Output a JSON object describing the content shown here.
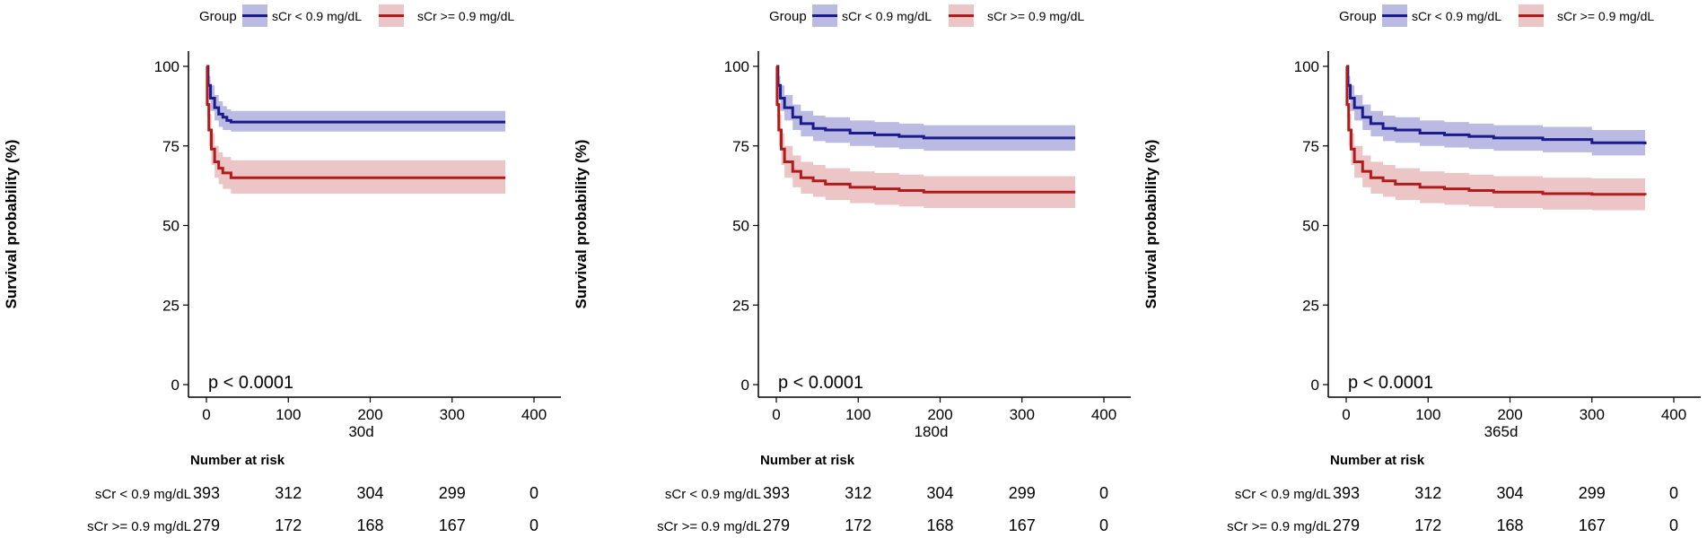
{
  "chart_data": [
    {
      "type": "line",
      "title": "",
      "legend": {
        "title": "Group",
        "placement": "top"
      },
      "xlabel": "30d",
      "ylabel": "Survival probability (%)",
      "xlim": [
        0,
        400
      ],
      "ylim": [
        0,
        100
      ],
      "xticks": [
        "0",
        "100",
        "200",
        "300",
        "400"
      ],
      "yticks": [
        "0",
        "25",
        "50",
        "75",
        "100"
      ],
      "annotation": "p < 0.0001",
      "risk_table_title": "Number at risk",
      "series": [
        {
          "name": "sCr < 0.9 mg/dL",
          "color": "#1a1a8c",
          "band_color": "#8c8cd0",
          "x": [
            0,
            2,
            5,
            10,
            15,
            20,
            25,
            30,
            365
          ],
          "y": [
            100,
            94,
            90,
            87,
            85,
            84,
            83,
            82.5,
            82.5
          ],
          "ci_low": [
            100,
            90,
            86,
            83,
            81,
            80,
            80,
            79.5,
            79.5
          ],
          "ci_high": [
            100,
            97,
            94,
            91,
            89,
            87.5,
            86.5,
            86,
            86
          ],
          "risk": [
            "393",
            "312",
            "304",
            "299",
            "0"
          ]
        },
        {
          "name": "sCr >= 0.9 mg/dL",
          "color": "#b01c1c",
          "band_color": "#e0a0a0",
          "x": [
            0,
            1,
            3,
            6,
            10,
            15,
            20,
            30,
            365
          ],
          "y": [
            100,
            88,
            80,
            74,
            70,
            68,
            66.5,
            65,
            65
          ],
          "ci_low": [
            100,
            84,
            75,
            69,
            65,
            63,
            61.5,
            60,
            60
          ],
          "ci_high": [
            100,
            92,
            85,
            79,
            75,
            73,
            71.5,
            70.5,
            70.5
          ],
          "risk": [
            "279",
            "172",
            "168",
            "167",
            "0"
          ]
        }
      ]
    },
    {
      "type": "line",
      "title": "",
      "legend": {
        "title": "Group",
        "placement": "top"
      },
      "xlabel": "180d",
      "ylabel": "Survival probability (%)",
      "xlim": [
        0,
        400
      ],
      "ylim": [
        0,
        100
      ],
      "xticks": [
        "0",
        "100",
        "200",
        "300",
        "400"
      ],
      "yticks": [
        "0",
        "25",
        "50",
        "75",
        "100"
      ],
      "annotation": "p < 0.0001",
      "risk_table_title": "Number at risk",
      "series": [
        {
          "name": "sCr < 0.9 mg/dL",
          "color": "#1a1a8c",
          "band_color": "#8c8cd0",
          "x": [
            0,
            2,
            5,
            10,
            20,
            30,
            45,
            60,
            90,
            120,
            150,
            180,
            365
          ],
          "y": [
            100,
            94,
            90,
            87,
            84,
            82,
            80.5,
            80,
            79,
            78.5,
            78,
            77.5,
            77.5
          ],
          "ci_low": [
            100,
            90,
            86,
            83,
            80,
            78,
            76.5,
            76,
            75,
            74.5,
            74,
            73.5,
            73.5
          ],
          "ci_high": [
            100,
            97,
            94,
            91,
            88,
            86,
            84.5,
            84,
            83,
            82.5,
            82,
            81.5,
            81.5
          ],
          "risk": [
            "393",
            "312",
            "304",
            "299",
            "0"
          ]
        },
        {
          "name": "sCr >= 0.9 mg/dL",
          "color": "#b01c1c",
          "band_color": "#e0a0a0",
          "x": [
            0,
            1,
            3,
            6,
            10,
            20,
            30,
            45,
            60,
            90,
            120,
            150,
            180,
            365
          ],
          "y": [
            100,
            88,
            80,
            74,
            70,
            67,
            65,
            64,
            63,
            62,
            61.5,
            61,
            60.5,
            60.5
          ],
          "ci_low": [
            100,
            84,
            75,
            69,
            65,
            62,
            60,
            59,
            58,
            57,
            56.5,
            56,
            55.5,
            55.5
          ],
          "ci_high": [
            100,
            92,
            85,
            79,
            75,
            72,
            70,
            69,
            68,
            67,
            66.5,
            66,
            65.5,
            65.5
          ],
          "risk": [
            "279",
            "172",
            "168",
            "167",
            "0"
          ]
        }
      ]
    },
    {
      "type": "line",
      "title": "",
      "legend": {
        "title": "Group",
        "placement": "top"
      },
      "xlabel": "365d",
      "ylabel": "Survival probability (%)",
      "xlim": [
        0,
        400
      ],
      "ylim": [
        0,
        100
      ],
      "xticks": [
        "0",
        "100",
        "200",
        "300",
        "400"
      ],
      "yticks": [
        "0",
        "25",
        "50",
        "75",
        "100"
      ],
      "annotation": "p < 0.0001",
      "risk_table_title": "Number at risk",
      "series": [
        {
          "name": "sCr < 0.9 mg/dL",
          "color": "#1a1a8c",
          "band_color": "#8c8cd0",
          "x": [
            0,
            2,
            5,
            10,
            20,
            30,
            45,
            60,
            90,
            120,
            150,
            180,
            240,
            300,
            365
          ],
          "y": [
            100,
            94,
            90,
            87,
            84,
            82,
            80.5,
            80,
            79,
            78.5,
            78,
            77.5,
            77,
            76,
            75.5
          ],
          "ci_low": [
            100,
            90,
            86,
            83,
            80,
            78,
            76.5,
            76,
            75,
            74.5,
            74,
            73.5,
            73,
            72,
            71.5
          ],
          "ci_high": [
            100,
            97,
            94,
            91,
            88,
            86,
            84.5,
            84,
            83,
            82.5,
            82,
            81.5,
            81,
            80,
            79.5
          ],
          "risk": [
            "393",
            "312",
            "304",
            "299",
            "0"
          ]
        },
        {
          "name": "sCr >= 0.9 mg/dL",
          "color": "#b01c1c",
          "band_color": "#e0a0a0",
          "x": [
            0,
            1,
            3,
            6,
            10,
            20,
            30,
            45,
            60,
            90,
            120,
            150,
            180,
            240,
            300,
            365
          ],
          "y": [
            100,
            88,
            80,
            74,
            70,
            67,
            65,
            64,
            63,
            62,
            61.5,
            61,
            60.5,
            60,
            59.8,
            59.5
          ],
          "ci_low": [
            100,
            84,
            75,
            69,
            65,
            62,
            60,
            59,
            58,
            57,
            56.5,
            56,
            55.5,
            55,
            54.8,
            54.5
          ],
          "ci_high": [
            100,
            92,
            85,
            79,
            75,
            72,
            70,
            69,
            68,
            67,
            66.5,
            66,
            65.5,
            65,
            64.8,
            64.5
          ],
          "risk": [
            "279",
            "172",
            "168",
            "167",
            "0"
          ]
        }
      ]
    }
  ]
}
